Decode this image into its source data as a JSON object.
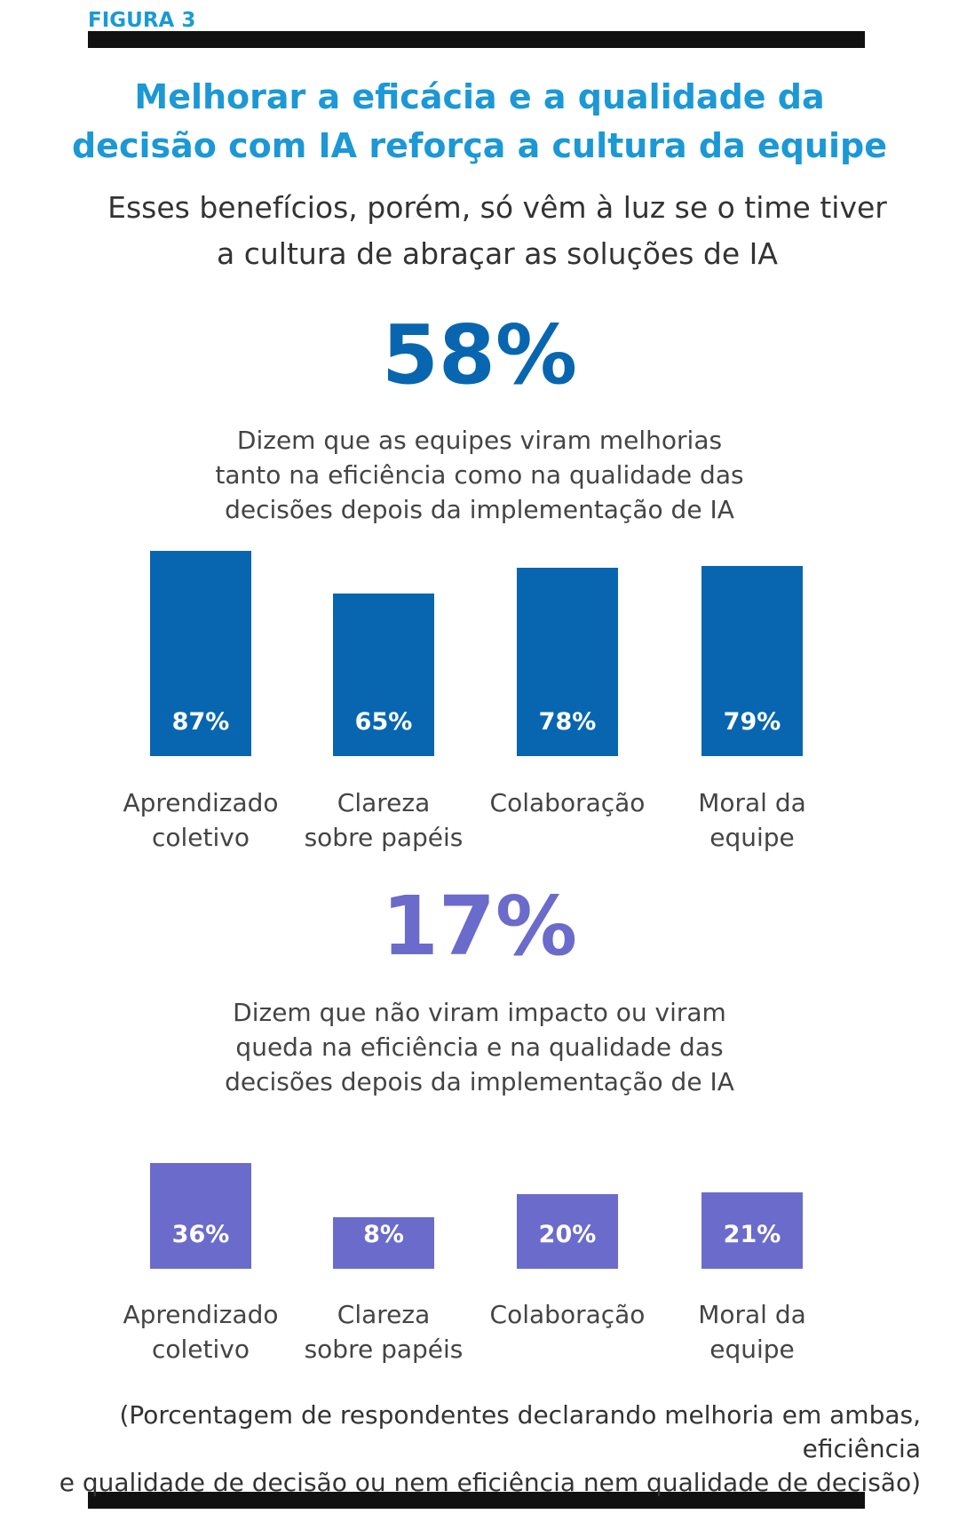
{
  "figure_label": "FIGURA 3",
  "title": "Melhorar a eficácia e a qualidade da\ndecisão com IA reforça a cultura da equipe",
  "subtitle": "Esses benefícios, porém, só vêm à luz se o time tiver\na cultura de abraçar as soluções de IA",
  "chart_data": [
    {
      "type": "bar",
      "headline": "58%",
      "description": "Dizem que as equipes viram melhorias\ntanto na eficiência como na qualidade das\ndecisões depois da implementação de IA",
      "categories": [
        "Aprendizado\ncoletivo",
        "Clareza\nsobre papéis",
        "Colaboração",
        "Moral da\nequipe"
      ],
      "values": [
        87,
        65,
        78,
        79
      ],
      "value_labels": [
        "87%",
        "65%",
        "78%",
        "79%"
      ],
      "color": "#0866b0"
    },
    {
      "type": "bar",
      "headline": "17%",
      "description": "Dizem que não viram impacto ou viram\nqueda na eficiência e na qualidade das\ndecisões depois da implementação de IA",
      "categories": [
        "Aprendizado\ncoletivo",
        "Clareza\nsobre papéis",
        "Colaboração",
        "Moral da\nequipe"
      ],
      "values": [
        36,
        8,
        20,
        21
      ],
      "value_labels": [
        "36%",
        "8%",
        "20%",
        "21%"
      ],
      "color": "#6b6bcc"
    }
  ],
  "footnote": "(Porcentagem de respondentes declarando melhoria em ambas, eficiência\ne qualidade de decisão ou nem eficiência nem qualidade de decisão)"
}
